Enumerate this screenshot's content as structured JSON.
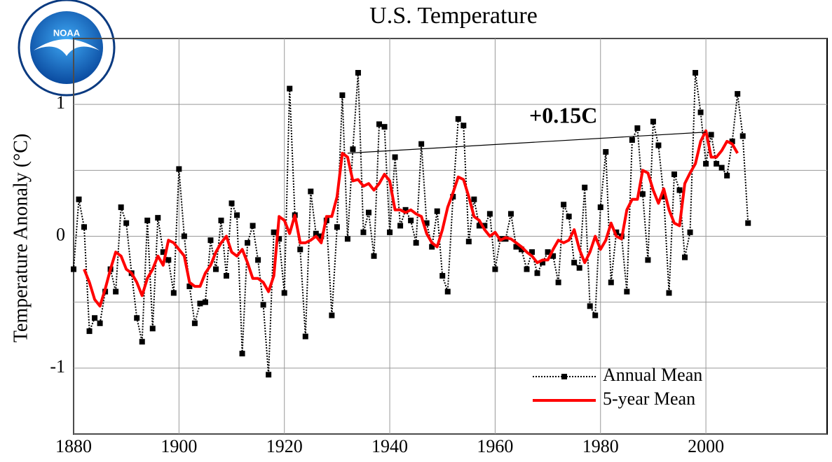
{
  "logo": {
    "text": "NOAA"
  },
  "chart_data": {
    "type": "line",
    "title": "U.S. Temperature",
    "y_label": "Temperature Anonaly (°C)",
    "xlim": [
      1880,
      2023
    ],
    "xticks": [
      1880,
      1900,
      1920,
      1940,
      1960,
      1980,
      2000
    ],
    "ylim": [
      -1.5,
      1.5
    ],
    "yticks": [
      -1,
      0,
      1
    ],
    "ygrid": [
      -1.5,
      -1,
      -0.5,
      0,
      0.5,
      1,
      1.5
    ],
    "grid": true,
    "legend": "lower right",
    "series": [
      {
        "name": "Annual Mean",
        "color": "#000000",
        "style": "dotted-markers",
        "x": [
          1880,
          1881,
          1882,
          1883,
          1884,
          1885,
          1886,
          1887,
          1888,
          1889,
          1890,
          1891,
          1892,
          1893,
          1894,
          1895,
          1896,
          1897,
          1898,
          1899,
          1900,
          1901,
          1902,
          1903,
          1904,
          1905,
          1906,
          1907,
          1908,
          1909,
          1910,
          1911,
          1912,
          1913,
          1914,
          1915,
          1916,
          1917,
          1918,
          1919,
          1920,
          1921,
          1922,
          1923,
          1924,
          1925,
          1926,
          1927,
          1928,
          1929,
          1930,
          1931,
          1932,
          1933,
          1934,
          1935,
          1936,
          1937,
          1938,
          1939,
          1940,
          1941,
          1942,
          1943,
          1944,
          1945,
          1946,
          1947,
          1948,
          1949,
          1950,
          1951,
          1952,
          1953,
          1954,
          1955,
          1956,
          1957,
          1958,
          1959,
          1960,
          1961,
          1962,
          1963,
          1964,
          1965,
          1966,
          1967,
          1968,
          1969,
          1970,
          1971,
          1972,
          1973,
          1974,
          1975,
          1976,
          1977,
          1978,
          1979,
          1980,
          1981,
          1982,
          1983,
          1984,
          1985,
          1986,
          1987,
          1988,
          1989,
          1990,
          1991,
          1992,
          1993,
          1994,
          1995,
          1996,
          1997,
          1998,
          1999,
          2000,
          2001,
          2002,
          2003,
          2004,
          2005,
          2006,
          2007,
          2008
        ],
        "values": [
          -0.25,
          0.28,
          0.07,
          -0.72,
          -0.62,
          -0.66,
          -0.42,
          -0.25,
          -0.42,
          0.22,
          0.1,
          -0.28,
          -0.62,
          -0.8,
          0.12,
          -0.7,
          0.14,
          -0.12,
          -0.18,
          -0.43,
          0.51,
          0.0,
          -0.38,
          -0.66,
          -0.51,
          -0.5,
          -0.03,
          -0.25,
          0.12,
          -0.3,
          0.25,
          0.16,
          -0.89,
          -0.05,
          0.08,
          -0.18,
          -0.52,
          -1.05,
          0.03,
          -0.02,
          -0.43,
          1.12,
          0.16,
          -0.1,
          -0.76,
          0.34,
          0.02,
          0.0,
          0.12,
          -0.6,
          0.07,
          1.07,
          -0.02,
          0.66,
          1.24,
          0.03,
          0.18,
          -0.15,
          0.85,
          0.83,
          0.03,
          0.6,
          0.08,
          0.2,
          0.12,
          -0.05,
          0.7,
          0.1,
          -0.08,
          0.19,
          -0.3,
          -0.42,
          0.3,
          0.89,
          0.84,
          -0.04,
          0.28,
          0.08,
          0.08,
          0.17,
          -0.25,
          -0.02,
          -0.02,
          0.17,
          -0.08,
          -0.1,
          -0.25,
          -0.12,
          -0.28,
          -0.2,
          -0.12,
          -0.15,
          -0.35,
          0.24,
          0.15,
          -0.2,
          -0.24,
          0.37,
          -0.53,
          -0.6,
          0.22,
          0.64,
          -0.35,
          0.03,
          0.0,
          -0.42,
          0.73,
          0.82,
          0.32,
          -0.18,
          0.87,
          0.69,
          0.3,
          -0.43,
          0.47,
          0.35,
          -0.16,
          0.03,
          1.24,
          0.94,
          0.55,
          0.77,
          0.55,
          0.52,
          0.46,
          0.72,
          1.08,
          0.76,
          0.1
        ]
      },
      {
        "name": "5-year Mean",
        "color": "#ff0000",
        "style": "solid",
        "x": [
          1882,
          1883,
          1884,
          1885,
          1886,
          1887,
          1888,
          1889,
          1890,
          1891,
          1892,
          1893,
          1894,
          1895,
          1896,
          1897,
          1898,
          1899,
          1900,
          1901,
          1902,
          1903,
          1904,
          1905,
          1906,
          1907,
          1908,
          1909,
          1910,
          1911,
          1912,
          1913,
          1914,
          1915,
          1916,
          1917,
          1918,
          1919,
          1920,
          1921,
          1922,
          1923,
          1924,
          1925,
          1926,
          1927,
          1928,
          1929,
          1930,
          1931,
          1932,
          1933,
          1934,
          1935,
          1936,
          1937,
          1938,
          1939,
          1940,
          1941,
          1942,
          1943,
          1944,
          1945,
          1946,
          1947,
          1948,
          1949,
          1950,
          1951,
          1952,
          1953,
          1954,
          1955,
          1956,
          1957,
          1958,
          1959,
          1960,
          1961,
          1962,
          1963,
          1964,
          1965,
          1966,
          1967,
          1968,
          1969,
          1970,
          1971,
          1972,
          1973,
          1974,
          1975,
          1976,
          1977,
          1978,
          1979,
          1980,
          1981,
          1982,
          1983,
          1984,
          1985,
          1986,
          1987,
          1988,
          1989,
          1990,
          1991,
          1992,
          1993,
          1994,
          1995,
          1996,
          1997,
          1998,
          1999,
          2000,
          2001,
          2002,
          2003,
          2004,
          2005,
          2006
        ],
        "values": [
          -0.25,
          -0.35,
          -0.48,
          -0.53,
          -0.4,
          -0.25,
          -0.12,
          -0.15,
          -0.25,
          -0.28,
          -0.35,
          -0.45,
          -0.32,
          -0.25,
          -0.15,
          -0.22,
          -0.03,
          -0.05,
          -0.1,
          -0.15,
          -0.35,
          -0.38,
          -0.38,
          -0.28,
          -0.22,
          -0.12,
          -0.05,
          0.0,
          -0.12,
          -0.15,
          -0.1,
          -0.2,
          -0.32,
          -0.32,
          -0.35,
          -0.42,
          -0.3,
          0.15,
          0.12,
          0.02,
          0.16,
          -0.05,
          -0.05,
          -0.03,
          0.0,
          -0.05,
          0.15,
          0.15,
          0.3,
          0.63,
          0.6,
          0.42,
          0.43,
          0.38,
          0.4,
          0.35,
          0.4,
          0.47,
          0.42,
          0.2,
          0.2,
          0.18,
          0.2,
          0.17,
          0.15,
          0.02,
          -0.05,
          -0.08,
          0.05,
          0.22,
          0.33,
          0.45,
          0.43,
          0.3,
          0.15,
          0.12,
          0.05,
          0.0,
          0.03,
          -0.03,
          -0.01,
          -0.02,
          -0.05,
          -0.08,
          -0.12,
          -0.15,
          -0.2,
          -0.18,
          -0.18,
          -0.1,
          -0.03,
          -0.05,
          -0.03,
          0.05,
          -0.1,
          -0.2,
          -0.12,
          0.0,
          -0.1,
          -0.03,
          0.1,
          0.0,
          -0.02,
          0.2,
          0.28,
          0.28,
          0.5,
          0.48,
          0.35,
          0.25,
          0.36,
          0.2,
          0.1,
          0.08,
          0.4,
          0.48,
          0.55,
          0.72,
          0.8,
          0.6,
          0.6,
          0.65,
          0.72,
          0.7,
          0.63
        ]
      }
    ],
    "trend_line": {
      "x": [
        1932,
        2000
      ],
      "y": [
        0.63,
        0.79
      ],
      "label": "+0.15C"
    }
  }
}
